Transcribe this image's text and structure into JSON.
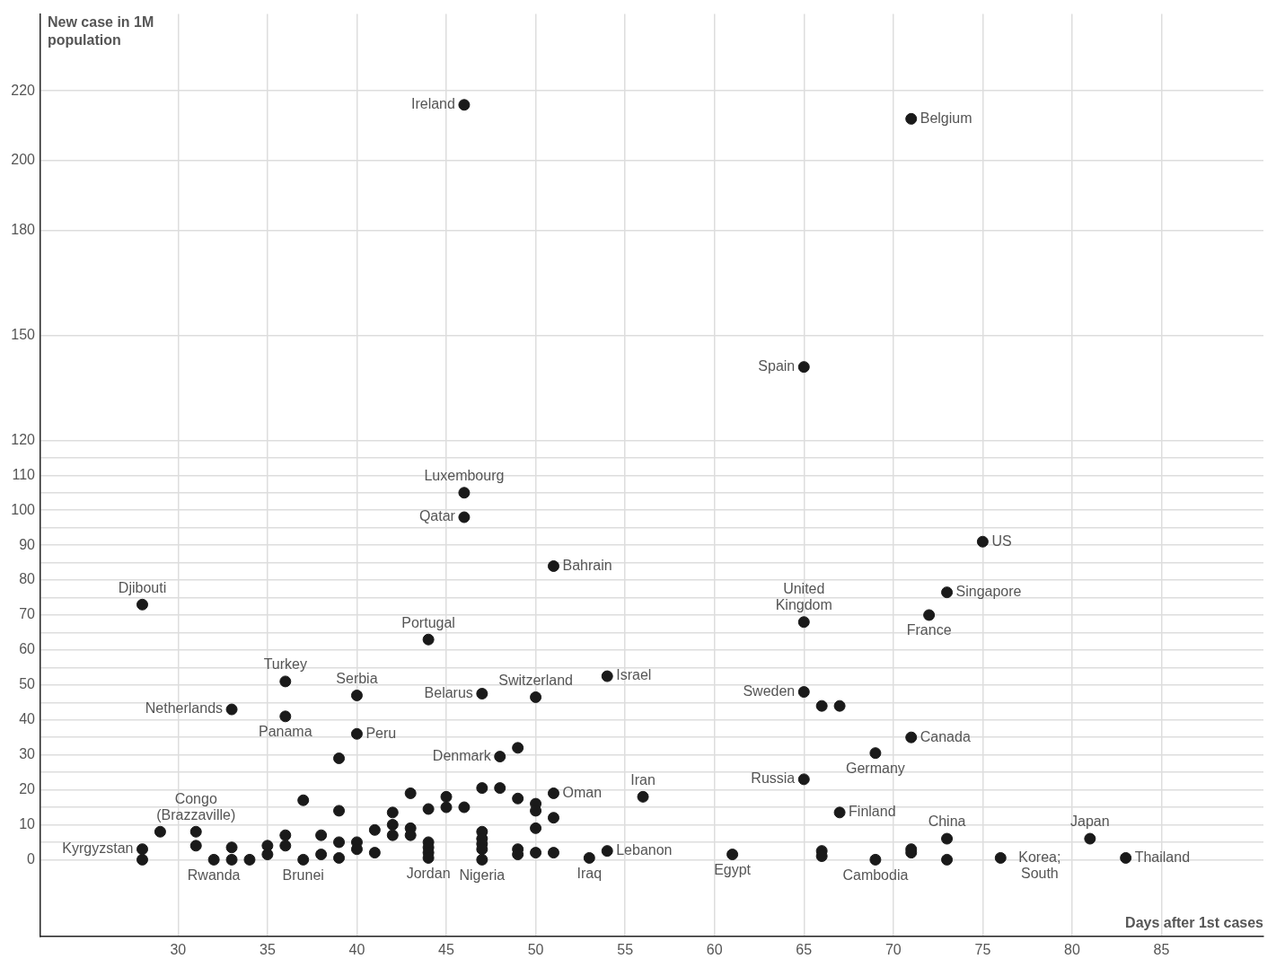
{
  "chart_data": {
    "type": "scatter",
    "xlabel": "Days after 1st cases",
    "ylabel": "New case in 1M population",
    "xlim": [
      22.3,
      90.7
    ],
    "ylim": [
      -22,
      242
    ],
    "xticks": [
      30,
      35,
      40,
      45,
      50,
      55,
      60,
      65,
      70,
      75,
      80,
      85
    ],
    "yticks": [
      0,
      {
        "value": 5,
        "label": null
      },
      10,
      {
        "value": 15,
        "label": null
      },
      20,
      {
        "value": 25,
        "label": null
      },
      30,
      {
        "value": 35,
        "label": null
      },
      40,
      {
        "value": 45,
        "label": null
      },
      50,
      {
        "value": 55,
        "label": null
      },
      60,
      {
        "value": 65,
        "label": null
      },
      70,
      {
        "value": 75,
        "label": null
      },
      80,
      {
        "value": 85,
        "label": null
      },
      90,
      {
        "value": 95,
        "label": null
      },
      100,
      {
        "value": 105,
        "label": null
      },
      110,
      {
        "value": 115,
        "label": null
      },
      120,
      150,
      180,
      200,
      220
    ],
    "grid": true,
    "legend": false,
    "marker": "circle",
    "series": [
      {
        "color": "#1a1a1a",
        "x": [
          28,
          28,
          28,
          29,
          31,
          31,
          32,
          33,
          33,
          33,
          34,
          35,
          35,
          36,
          36,
          36,
          36,
          37,
          37,
          38,
          38,
          39,
          39,
          39,
          39,
          40,
          40,
          40,
          40,
          41,
          41,
          42,
          42,
          42,
          43,
          43,
          43,
          44,
          44,
          44,
          44,
          44,
          44,
          45,
          45,
          46,
          46,
          46,
          46,
          47,
          47,
          47,
          47,
          47,
          47,
          47,
          48,
          48,
          49,
          49,
          49,
          49,
          50,
          50,
          50,
          50,
          50,
          51,
          51,
          51,
          51,
          53,
          54,
          54,
          56,
          61,
          65,
          65,
          65,
          65,
          66,
          66,
          66,
          67,
          67,
          69,
          69,
          71,
          71,
          71,
          71,
          72,
          73,
          73,
          73,
          75,
          76,
          81,
          83
        ],
        "values": [
          3,
          0,
          73,
          8,
          8,
          4,
          0,
          3.5,
          0,
          43,
          0,
          4,
          1.5,
          7,
          4,
          51,
          41,
          0,
          17,
          7,
          1.5,
          14,
          5,
          0.5,
          29,
          5,
          3,
          47,
          36,
          8.5,
          2,
          13.5,
          10,
          7,
          19,
          9,
          7,
          14.5,
          5,
          3.5,
          2,
          0.5,
          63,
          18,
          15,
          15,
          216,
          105,
          98,
          20.5,
          8,
          6,
          4.5,
          3,
          0,
          47.5,
          20.5,
          29.5,
          32,
          17.5,
          3,
          1.5,
          16,
          14,
          9,
          2,
          46.5,
          19,
          12,
          2,
          84,
          0.5,
          2.5,
          52.5,
          18,
          1.5,
          141,
          68,
          48,
          23,
          44,
          2.5,
          1,
          44,
          13.5,
          30.5,
          0,
          212,
          35,
          3,
          2,
          70,
          76.5,
          6,
          0,
          91,
          0.5,
          6,
          0.5
        ]
      }
    ],
    "annotations": [
      {
        "text": "Ireland",
        "x": 46,
        "y": 216
      },
      {
        "text": "Belgium",
        "x": 71,
        "y": 212
      },
      {
        "text": "Spain",
        "x": 65,
        "y": 141
      },
      {
        "text": "Luxembourg",
        "x": 46,
        "y": 105
      },
      {
        "text": "Qatar",
        "x": 46,
        "y": 98
      },
      {
        "text": "US",
        "x": 75,
        "y": 91
      },
      {
        "text": "Bahrain",
        "x": 51,
        "y": 84
      },
      {
        "text": "Djibouti",
        "x": 28,
        "y": 73
      },
      {
        "text": "Singapore",
        "x": 73,
        "y": 76.5
      },
      {
        "text": "United Kingdom",
        "x": 65,
        "y": 68
      },
      {
        "text": "France",
        "x": 72,
        "y": 70
      },
      {
        "text": "Portugal",
        "x": 44,
        "y": 63
      },
      {
        "text": "Turkey",
        "x": 36,
        "y": 51
      },
      {
        "text": "Serbia",
        "x": 40,
        "y": 47
      },
      {
        "text": "Switzerland",
        "x": 50,
        "y": 46.5
      },
      {
        "text": "Israel",
        "x": 54,
        "y": 52.5
      },
      {
        "text": "Belarus",
        "x": 47,
        "y": 47.5
      },
      {
        "text": "Sweden",
        "x": 65,
        "y": 48
      },
      {
        "text": "Netherlands",
        "x": 33,
        "y": 43
      },
      {
        "text": "Panama",
        "x": 36,
        "y": 41
      },
      {
        "text": "Peru",
        "x": 40,
        "y": 36
      },
      {
        "text": "Canada",
        "x": 71,
        "y": 35
      },
      {
        "text": "Denmark",
        "x": 48,
        "y": 29.5
      },
      {
        "text": "Germany",
        "x": 69,
        "y": 30.5
      },
      {
        "text": "Iran",
        "x": 56,
        "y": 18
      },
      {
        "text": "Oman",
        "x": 51,
        "y": 19
      },
      {
        "text": "Russia",
        "x": 65,
        "y": 23
      },
      {
        "text": "Congo (Brazzaville)",
        "x": 31,
        "y": 8
      },
      {
        "text": "Finland",
        "x": 67,
        "y": 13.5
      },
      {
        "text": "China",
        "x": 73,
        "y": 6
      },
      {
        "text": "Japan",
        "x": 81,
        "y": 6
      },
      {
        "text": "Kyrgyzstan",
        "x": 28,
        "y": 3
      },
      {
        "text": "Lebanon",
        "x": 54,
        "y": 2.5
      },
      {
        "text": "Korea; South",
        "x": 76,
        "y": 0.5
      },
      {
        "text": "Thailand",
        "x": 83,
        "y": 0.5
      },
      {
        "text": "Egypt",
        "x": 61,
        "y": 1.5
      },
      {
        "text": "Rwanda",
        "x": 32,
        "y": 0
      },
      {
        "text": "Brunei",
        "x": 37,
        "y": 0
      },
      {
        "text": "Jordan",
        "x": 44,
        "y": 0.5
      },
      {
        "text": "Nigeria",
        "x": 47,
        "y": 0
      },
      {
        "text": "Iraq",
        "x": 53,
        "y": 0.5
      },
      {
        "text": "Cambodia",
        "x": 69,
        "y": 0
      }
    ]
  }
}
